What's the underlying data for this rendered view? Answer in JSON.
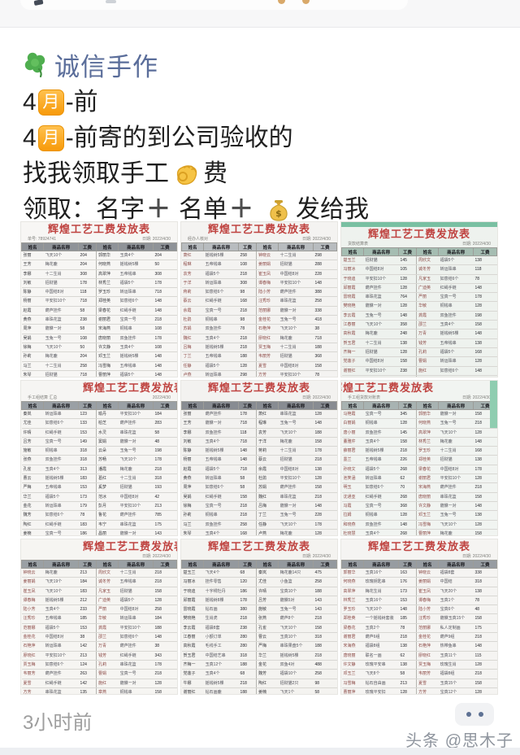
{
  "author": {
    "name": "诚信手作"
  },
  "post": {
    "month_char": "月",
    "line1_prefix": "4",
    "line1_suffix": "-前",
    "line2_prefix": "4",
    "line2_suffix": "-前寄的到公司验收的",
    "line3_before": "找我领取手工",
    "line3_after": "费",
    "line4_a": "领取：名字",
    "plus": "＋",
    "line4_b": "名单",
    "line4_c": "发给我"
  },
  "footer": {
    "time": "3小时前",
    "watermark": "头条 @思木子"
  },
  "colors": {
    "name_blue": "#5a6d9a",
    "title_red": "#bf4340",
    "teal": "#79c0a2"
  },
  "table_headers": [
    "姓名",
    "商品名称",
    "工费",
    "姓名",
    "商品名称",
    "工费"
  ],
  "photos": [
    {
      "title": "辉煌工艺工费发放表",
      "cap_left": "单号: 78924741",
      "cap_right": "日期: 2022/4/30",
      "bg": "#f7f6f4",
      "header_bg": "#8f9398",
      "name_color": "#3c3c40",
      "title_align": "center",
      "teal_strip": false,
      "teal_corner": false,
      "rows": [
        [
          "张丽",
          "飞天10个",
          "204",
          "郭丽华",
          "玉真4个",
          "204"
        ],
        [
          "王芳",
          "梅花鹿",
          "204",
          "何晓燕",
          "摇钱树5棵",
          "50"
        ],
        [
          "李娜",
          "十二生肖",
          "308",
          "高翠萍",
          "五帝钱串",
          "308"
        ],
        [
          "刘敏",
          "招财猫",
          "178",
          "林秀兰",
          "福袋5个",
          "178"
        ],
        [
          "陈静",
          "中国结8对",
          "118",
          "罗玉珍",
          "转运珠串",
          "718"
        ],
        [
          "杨丽",
          "平安扣10个",
          "718",
          "郑桂英",
          "如意结6个",
          "148"
        ],
        [
          "赵霞",
          "葫芦挂件",
          "58",
          "梁春花",
          "红绳手链",
          "148"
        ],
        [
          "黄燕",
          "串珠花篮",
          "238",
          "谢丽君",
          "宝真一号",
          "218"
        ],
        [
          "周萍",
          "貔貅一对",
          "58",
          "宋海燕",
          "铜钱串",
          "108"
        ],
        [
          "吴娟",
          "玉兔一号",
          "108",
          "唐晓丽",
          "双鱼挂件",
          "178"
        ],
        [
          "徐梅",
          "飞天10个",
          "50",
          "许文静",
          "玉真4个",
          "108"
        ],
        [
          "孙莉",
          "梅花鹿",
          "204",
          "邓玉兰",
          "摇钱树5棵",
          "148"
        ],
        [
          "马兰",
          "十二生肖",
          "258",
          "冯雪梅",
          "五帝钱串",
          "148"
        ],
        [
          "朱琴",
          "招财猫",
          "718",
          "曹丽萍",
          "福袋5个",
          "148"
        ],
        [
          "胡霞",
          "中国结8对",
          "118",
          "彭小霞",
          "转运珠串",
          "118"
        ]
      ]
    },
    {
      "title": "辉煌工艺工费发放表",
      "cap_left": "经办人核对",
      "cap_right": "日期: 2022/4/30",
      "bg": "#f4f3f1",
      "header_bg": "#b8bcbf",
      "name_color": "#8c4a46",
      "title_align": "center",
      "teal_strip": false,
      "teal_corner": false,
      "rows": [
        [
          "萧红",
          "摇钱树5棵",
          "258",
          "钟晓云",
          "十二生肖",
          "298"
        ],
        [
          "程琳",
          "五帝钱串",
          "108",
          "姜丽娟",
          "招财猫",
          "288"
        ],
        [
          "袁芳",
          "福袋5个",
          "218",
          "崔玉凤",
          "中国结8对",
          "228"
        ],
        [
          "于洋",
          "转运珠串",
          "308",
          "谭春梅",
          "平安扣10个",
          "148"
        ],
        [
          "蒋莉",
          "如意结6个",
          "98",
          "陆小芳",
          "葫芦挂件",
          "388"
        ],
        [
          "蔡云",
          "红绳手链",
          "168",
          "汪秀珍",
          "串珠花篮",
          "258"
        ],
        [
          "余霞",
          "宝真一号",
          "218",
          "范丽娜",
          "貔貅一对",
          "338"
        ],
        [
          "杜鹃",
          "铜钱串",
          "98",
          "金桂花",
          "玉兔一号",
          "418"
        ],
        [
          "苏娟",
          "双鱼挂件",
          "78",
          "石艳萍",
          "飞天10个",
          "38"
        ],
        [
          "魏红",
          "玉真4个",
          "218",
          "廖晓红",
          "梅花鹿",
          "718"
        ],
        [
          "吕梅",
          "摇钱树5棵",
          "218",
          "贾玉梅",
          "十二生肖",
          "188"
        ],
        [
          "丁兰",
          "五帝钱串",
          "188",
          "韦丽芳",
          "招财猫",
          "368"
        ],
        [
          "任静",
          "福袋5个",
          "128",
          "夏雪",
          "中国结8对",
          "158"
        ],
        [
          "卢燕",
          "转运珠串",
          "298",
          "方芳",
          "平安扣10个",
          "78"
        ],
        [
          "姚丽",
          "如意结6个",
          "358",
          "白雪",
          "葫芦挂件",
          "158"
        ]
      ]
    },
    {
      "title": "辉煌工艺工费发放表",
      "cap_left": "货款结算表",
      "cap_right": "日期: 2022/4/30",
      "bg": "#eef2ee",
      "header_bg": "#a5bdb2",
      "name_color": "#8c4a46",
      "title_align": "center",
      "teal_strip": true,
      "teal_corner": false,
      "rows": [
        [
          "楚玉兰",
          "招财猫",
          "145",
          "周欣文",
          "福袋5个",
          "138"
        ],
        [
          "冯丽冰",
          "中国结8对",
          "105",
          "诚冬芳",
          "转运珠串",
          "118"
        ],
        [
          "于晓迪",
          "平安扣10个",
          "128",
          "凡家玉",
          "如意结6个",
          "78"
        ],
        [
          "邱丽霞",
          "葫芦挂件",
          "128",
          "广迪英",
          "红绳手链",
          "148"
        ],
        [
          "雷晓霞",
          "串珠花篮",
          "764",
          "严丽",
          "宝真一号",
          "178"
        ],
        [
          "樊晓艳",
          "貔貅一对",
          "128",
          "华敏",
          "铜钱串",
          "128"
        ],
        [
          "李云霞",
          "玉兔一号",
          "148",
          "龚霞",
          "双鱼挂件",
          "198"
        ],
        [
          "江春丽",
          "飞天10个",
          "358",
          "邵兰",
          "玉真4个",
          "158"
        ],
        [
          "高秋霞",
          "梅花鹿",
          "248",
          "万青",
          "摇钱树5棵",
          "148"
        ],
        [
          "贺玉君",
          "十二生肖",
          "138",
          "钱芳",
          "五帝钱串",
          "138"
        ],
        [
          "齐梅一",
          "招财猫",
          "128",
          "孔莉",
          "福袋5个",
          "168"
        ],
        [
          "党莲子",
          "中国结8对",
          "158",
          "曹娟",
          "转运珠串",
          "128"
        ],
        [
          "谢丽红",
          "平安扣10个",
          "238",
          "施红",
          "如意结6个",
          "148"
        ],
        [
          "韩玉凤",
          "葫芦挂件",
          "248",
          "章燕",
          "红绳手链",
          "128"
        ],
        [
          "安琪",
          "串珠花篮",
          "148",
          "潘丽",
          "宝真一号",
          "108"
        ]
      ]
    },
    {
      "title": "辉煌工艺工费发放表",
      "cap_left": "手工组结算 汇总",
      "cap_right": "2022/4/30",
      "bg": "#f6f5f3",
      "header_bg": "#9aa0a5",
      "name_color": "#3c3c40",
      "title_align": "right",
      "teal_strip": false,
      "teal_corner": false,
      "rows": [
        [
          "秦岚",
          "转运珠串",
          "123",
          "喻丹",
          "平安扣10个",
          "184"
        ],
        [
          "尤佳",
          "如意结6个",
          "133",
          "柏芝",
          "葫芦挂件",
          "283"
        ],
        [
          "许晴",
          "红绳手链",
          "153",
          "水灵",
          "串珠花篮",
          "58"
        ],
        [
          "吕芳",
          "宝真一号",
          "149",
          "窦娟",
          "貔貅一对",
          "48"
        ],
        [
          "施敏",
          "铜钱串",
          "318",
          "云朵",
          "玉兔一号",
          "198"
        ],
        [
          "张燕",
          "双鱼挂件",
          "318",
          "苏畅",
          "飞天10个",
          "178"
        ],
        [
          "孔雀",
          "玉真4个",
          "313",
          "潘霞",
          "梅花鹿",
          "218"
        ],
        [
          "曹云",
          "摇钱树5棵",
          "183",
          "葛红",
          "十二生肖",
          "318"
        ],
        [
          "严梅",
          "五帝钱串",
          "153",
          "奚梦",
          "招财猫",
          "193"
        ],
        [
          "华兰",
          "福袋5个",
          "173",
          "范冰",
          "中国结8对",
          "42"
        ],
        [
          "金花",
          "转运珠串",
          "179",
          "彭月",
          "平安扣10个",
          "213"
        ],
        [
          "魏芳",
          "如意结6个",
          "78",
          "鲁花",
          "葫芦挂件",
          "785"
        ],
        [
          "陶红",
          "红绳手链",
          "183",
          "韦宁",
          "串珠花篮",
          "175"
        ],
        [
          "姜楠",
          "宝真一号",
          "186",
          "昌丽",
          "貔貅一对",
          "143"
        ],
        [
          "戚薇",
          "铜钱串",
          "128",
          "马蓉",
          "玉兔一号",
          "218"
        ]
      ]
    },
    {
      "title": "辉煌工艺工费发放表",
      "cap_left": "",
      "cap_right": "日期: 2022/4/30",
      "bg": "#f3f2f0",
      "header_bg": "#888c92",
      "name_color": "#3c3c40",
      "title_align": "center",
      "teal_strip": false,
      "teal_corner": false,
      "rows": [
        [
          "张丽",
          "葫芦挂件",
          "178",
          "萧红",
          "串珠花篮",
          "128"
        ],
        [
          "王芳",
          "貔貅一对",
          "718",
          "程琳",
          "玉兔一号",
          "148"
        ],
        [
          "李娜",
          "双鱼挂件",
          "118",
          "袁芳",
          "飞天10个",
          "188"
        ],
        [
          "刘敏",
          "玉真4个",
          "718",
          "于洋",
          "梅花鹿",
          "158"
        ],
        [
          "陈静",
          "摇钱树5棵",
          "148",
          "蒋莉",
          "十二生肖",
          "178"
        ],
        [
          "杨丽",
          "五帝钱串",
          "148",
          "蔡云",
          "招财猫",
          "218"
        ],
        [
          "赵霞",
          "福袋5个",
          "718",
          "余霞",
          "中国结8对",
          "138"
        ],
        [
          "黄燕",
          "转运珠串",
          "58",
          "杜鹃",
          "平安扣10个",
          "128"
        ],
        [
          "周萍",
          "如意结6个",
          "58",
          "苏娟",
          "葫芦挂件",
          "158"
        ],
        [
          "吴娟",
          "红绳手链",
          "158",
          "魏红",
          "串珠花篮",
          "218"
        ],
        [
          "徐梅",
          "宝真一号",
          "218",
          "吕梅",
          "貔貅一对",
          "148"
        ],
        [
          "孙莉",
          "铜钱串",
          "218",
          "丁兰",
          "玉兔一号",
          "228"
        ],
        [
          "马兰",
          "双鱼挂件",
          "258",
          "任静",
          "飞天10个",
          "178"
        ],
        [
          "朱琴",
          "玉真4个",
          "168",
          "卢燕",
          "梅花鹿",
          "128"
        ],
        [
          "胡霞",
          "摇钱树5棵",
          "118",
          "姚丽",
          "十二生肖",
          "148"
        ]
      ]
    },
    {
      "title": "辉煌工艺工费发放表",
      "cap_left": "手工组货款对账表",
      "cap_right": "日期: 2022/4/30",
      "bg": "#f1f4f1",
      "header_bg": "#a8b3b2",
      "name_color": "#8c4a46",
      "title_align": "left",
      "teal_strip": false,
      "teal_corner": true,
      "rows": [
        [
          "马艳霞",
          "宝真一号",
          "345",
          "郭丽华",
          "貔貅一对",
          "158"
        ],
        [
          "白丽娟",
          "铜钱串",
          "128",
          "何晓燕",
          "玉兔一号",
          "218"
        ],
        [
          "唐小丽",
          "双鱼挂件",
          "145",
          "高翠萍",
          "飞天10个",
          "128"
        ],
        [
          "董雅芹",
          "玉真4个",
          "158",
          "林秀兰",
          "梅花鹿",
          "148"
        ],
        [
          "薛丽君",
          "摇钱树5棵",
          "218",
          "罗玉珍",
          "十二生肖",
          "168"
        ],
        [
          "墨兰",
          "五帝钱串",
          "226",
          "郑桂英",
          "招财猫",
          "138"
        ],
        [
          "孙晓文",
          "福袋5个",
          "268",
          "梁春花",
          "中国结8对",
          "178"
        ],
        [
          "池笑涵",
          "转运珠串",
          "62",
          "谢丽君",
          "平安扣10个",
          "128"
        ],
        [
          "明玉",
          "如意结6个",
          "70",
          "宋海燕",
          "葫芦挂件",
          "218"
        ],
        [
          "沈通亚",
          "红绳手链",
          "268",
          "唐晓丽",
          "串珠花篮",
          "158"
        ],
        [
          "冯霞",
          "宝真一号",
          "368",
          "许文静",
          "貔貅一对",
          "148"
        ],
        [
          "拉姆",
          "铜钱串",
          "128",
          "邓玉兰",
          "玉兔一号",
          "138"
        ],
        [
          "和晓燕",
          "双鱼挂件",
          "148",
          "冯雪梅",
          "飞天10个",
          "128"
        ],
        [
          "杜晓慧",
          "玉真4个",
          "268",
          "曹丽萍",
          "梅花鹿",
          "158"
        ],
        [
          "牛娜",
          "摇钱树5棵",
          "178",
          "彭小霞",
          "十二生肖",
          "148"
        ]
      ]
    },
    {
      "title": "辉煌工艺工费发放表",
      "cap_left": "",
      "cap_right": "日期: 2022/4/30",
      "bg": "#f6f5f2",
      "header_bg": "#9aa0a4",
      "name_color": "#8c4a46",
      "title_align": "right",
      "teal_strip": false,
      "teal_corner": false,
      "rows": [
        [
          "钟晓云",
          "梅花鹿",
          "213",
          "周欣文",
          "十二生肖",
          "218"
        ],
        [
          "姜丽娟",
          "飞天19个",
          "184",
          "诚冬芳",
          "五帝钱串",
          "218"
        ],
        [
          "崔玉凤",
          "飞天10个",
          "183",
          "凡家玉",
          "招财猫",
          "158"
        ],
        [
          "谭春梅",
          "摇钱树5棵",
          "212",
          "广迪英",
          "福袋5个",
          "128"
        ],
        [
          "陆小芳",
          "玉真4个",
          "233",
          "严丽",
          "中国结8对",
          "258"
        ],
        [
          "汪秀珍",
          "五帝钱串",
          "185",
          "华敏",
          "转运珠串",
          "184"
        ],
        [
          "范丽娜",
          "福袋5个",
          "153",
          "龚霞",
          "平安扣10个",
          "188"
        ],
        [
          "金桂花",
          "中国结8对",
          "38",
          "邵兰",
          "如意结6个",
          "148"
        ],
        [
          "石艳萍",
          "转运珠串",
          "142",
          "万青",
          "葫芦挂件",
          "38"
        ],
        [
          "廖晓红",
          "平安扣10个",
          "213",
          "钱芳",
          "红绳手链",
          "343"
        ],
        [
          "贾玉梅",
          "如意结6个",
          "124",
          "孔莉",
          "串珠花篮",
          "178"
        ],
        [
          "韦丽芳",
          "葫芦挂件",
          "263",
          "曹娟",
          "宝真一号",
          "218"
        ],
        [
          "夏雪",
          "红绳手链",
          "142",
          "施红",
          "貔貅一对",
          "128"
        ],
        [
          "方芳",
          "串珠花篮",
          "135",
          "章燕",
          "铜钱串",
          "158"
        ],
        [
          "白雪",
          "宝真一号",
          "128",
          "潘丽",
          "玉兔一号",
          "148"
        ]
      ]
    },
    {
      "title": "辉煌工艺工费发放表",
      "cap_left": "",
      "cap_right": "日期: 2022/4/30",
      "bg": "#f4f3f0",
      "header_bg": "#94999e",
      "name_color": "#3c3c40",
      "title_align": "center",
      "teal_strip": false,
      "teal_corner": false,
      "rows": [
        [
          "楚玉兰",
          "飞天4个",
          "68",
          "秦岚",
          "梅花鹿14只",
          "475"
        ],
        [
          "冯丽冰",
          "挂件零售",
          "120",
          "尤佳",
          "小鱼篮",
          "258"
        ],
        [
          "于晓迪",
          "十字绣牡丹",
          "186",
          "许晴",
          "宝真10个",
          "188"
        ],
        [
          "邱丽霞",
          "摇钱树8棵",
          "178",
          "吕芳",
          "貔貅5对",
          "143"
        ],
        [
          "雷晓霞",
          "钻石画",
          "380",
          "施敏",
          "玉兔一号",
          "143"
        ],
        [
          "樊晓艳",
          "生肖虎",
          "218",
          "张燕",
          "葫芦8个",
          "218"
        ],
        [
          "李云霞",
          "福袋8套",
          "238",
          "孔雀",
          "飞天10个",
          "158"
        ],
        [
          "江春丽",
          "小额订单",
          "280",
          "曹云",
          "玉真10个",
          "318"
        ],
        [
          "高秋霞",
          "毛线手工",
          "280",
          "严梅",
          "串珠果盘5个",
          "188"
        ],
        [
          "贺玉君",
          "中国结艺串",
          "318",
          "华兰",
          "摇钱树5棵",
          "218"
        ],
        [
          "齐梅一",
          "玉真12个",
          "188",
          "金花",
          "双鱼4对",
          "488"
        ],
        [
          "党莲子",
          "玉真4个",
          "68",
          "魏芳",
          "福袋10个",
          "258"
        ],
        [
          "牛娜",
          "摇钱树5棵",
          "218",
          "陶红",
          "招财猫2只",
          "98"
        ],
        [
          "谢丽红",
          "钻石画鹿",
          "188",
          "姜楠",
          "飞天1个",
          "58"
        ],
        [
          "韩玉凤",
          "飞天30个",
          "188",
          "戚薇",
          "梅花鹿",
          "218"
        ]
      ]
    },
    {
      "title": "辉煌工艺工费发放表",
      "cap_left": "",
      "cap_right": "日期: 2022/4/30",
      "bg": "#f5f4f2",
      "header_bg": "#979ca1",
      "name_color": "#8c4a46",
      "title_align": "center",
      "teal_strip": false,
      "teal_corner": false,
      "rows": [
        [
          "郭丽华",
          "玉真16个",
          "163",
          "钟晓云",
          "福袋8套",
          "338"
        ],
        [
          "何晓燕",
          "玫瑰钥匙串",
          "176",
          "姜丽娟",
          "中国结",
          "318"
        ],
        [
          "高翠萍",
          "梅花生肖",
          "173",
          "崔玉凤",
          "飞天20个",
          "138"
        ],
        [
          "林秀兰",
          "玉真16个",
          "153",
          "谭春梅",
          "玉真1个",
          "78"
        ],
        [
          "罗玉珍",
          "飞天10个",
          "148",
          "陆小芳",
          "宝真6个",
          "48"
        ],
        [
          "郑桂英",
          "一个摇钱树套装",
          "185",
          "汪秀珍",
          "貔貅玉真15个",
          "158"
        ],
        [
          "梁春花",
          "玉真2个",
          "78",
          "范丽娜",
          "私人定制画",
          "175"
        ],
        [
          "谢丽君",
          "葫芦6组",
          "218",
          "金桂花",
          "葫芦9组",
          "218"
        ],
        [
          "宋海燕",
          "福袋8组",
          "138",
          "石艳萍",
          "热带鱼串",
          "148"
        ],
        [
          "唐晓丽",
          "联名一画",
          "62",
          "廖晓红",
          "玉真11个",
          "115"
        ],
        [
          "许文静",
          "玫瑰平安串",
          "138",
          "贾玉梅",
          "玫瑰生肖",
          "128"
        ],
        [
          "邓玉兰",
          "飞天8个",
          "58",
          "韦丽芳",
          "福袋8组",
          "218"
        ],
        [
          "冯雪梅",
          "钻石自由画",
          "213",
          "夏雪",
          "玉真15个",
          "158"
        ],
        [
          "曹丽萍",
          "玫瑰平安扣",
          "128",
          "方芳",
          "宝真12个",
          "128"
        ],
        [
          "彭小霞",
          "生肖鼠",
          "213",
          "白雪",
          "生肖鸡",
          "198"
        ]
      ]
    }
  ]
}
